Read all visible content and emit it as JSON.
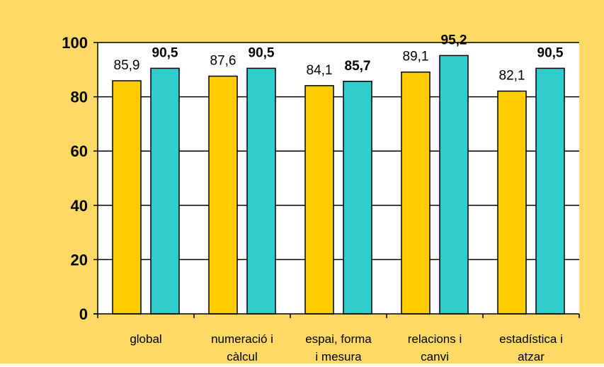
{
  "chart_data": {
    "type": "bar",
    "categories": [
      [
        "global"
      ],
      [
        "numeració i",
        "càlcul"
      ],
      [
        "espai, forma",
        "i mesura"
      ],
      [
        "relacions i",
        "canvi"
      ],
      [
        "estadística i",
        "atzar"
      ]
    ],
    "series": [
      {
        "values": [
          85.9,
          87.6,
          84.1,
          89.1,
          82.1
        ],
        "labels": [
          "85,9",
          "87,6",
          "84,1",
          "89,1",
          "82,1"
        ],
        "color": "#FFCC00",
        "label_bold": false
      },
      {
        "values": [
          90.5,
          90.5,
          85.7,
          95.2,
          90.5
        ],
        "labels": [
          "90,5",
          "90,5",
          "85,7",
          "95,2",
          "90,5"
        ],
        "color": "#33CCCC",
        "label_bold": true
      }
    ],
    "yticks": [
      0,
      20,
      40,
      60,
      80,
      100
    ],
    "ylim": [
      0,
      100
    ],
    "grid": true,
    "background_color": "#FFD966",
    "plot_color": "#FFFFFF",
    "title": "",
    "xlabel": "",
    "ylabel": ""
  }
}
